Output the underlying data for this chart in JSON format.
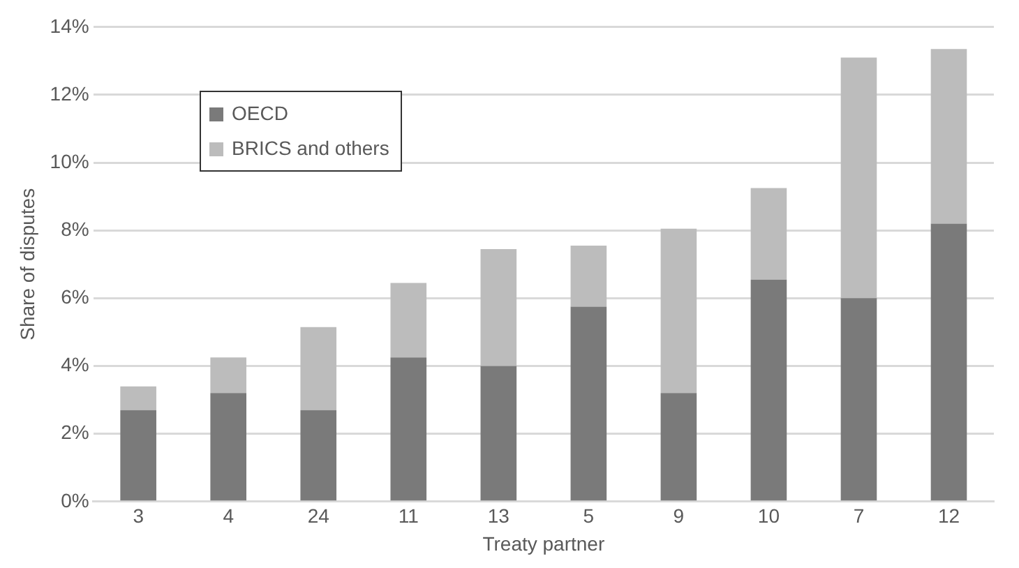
{
  "chart_data": {
    "type": "bar",
    "stacked": true,
    "xlabel": "Treaty partner",
    "ylabel": "Share of disputes",
    "categories": [
      "3",
      "4",
      "24",
      "11",
      "13",
      "5",
      "9",
      "10",
      "7",
      "12"
    ],
    "series": [
      {
        "name": "OECD",
        "color": "#7a7a7a",
        "values": [
          2.7,
          3.2,
          2.7,
          4.25,
          4.0,
          5.75,
          3.2,
          6.55,
          6.0,
          8.2
        ]
      },
      {
        "name": "BRICS and others",
        "color": "#bcbcbc",
        "values": [
          0.7,
          1.05,
          2.45,
          2.2,
          3.45,
          1.8,
          4.85,
          2.7,
          7.1,
          5.15
        ]
      }
    ],
    "ylim": [
      0,
      14
    ],
    "yticks": [
      {
        "value": 0,
        "label": "0%"
      },
      {
        "value": 2,
        "label": "2%"
      },
      {
        "value": 4,
        "label": "4%"
      },
      {
        "value": 6,
        "label": "6%"
      },
      {
        "value": 8,
        "label": "8%"
      },
      {
        "value": 10,
        "label": "10%"
      },
      {
        "value": 12,
        "label": "12%"
      },
      {
        "value": 14,
        "label": "14%"
      }
    ],
    "grid": "y",
    "legend": "top left"
  }
}
